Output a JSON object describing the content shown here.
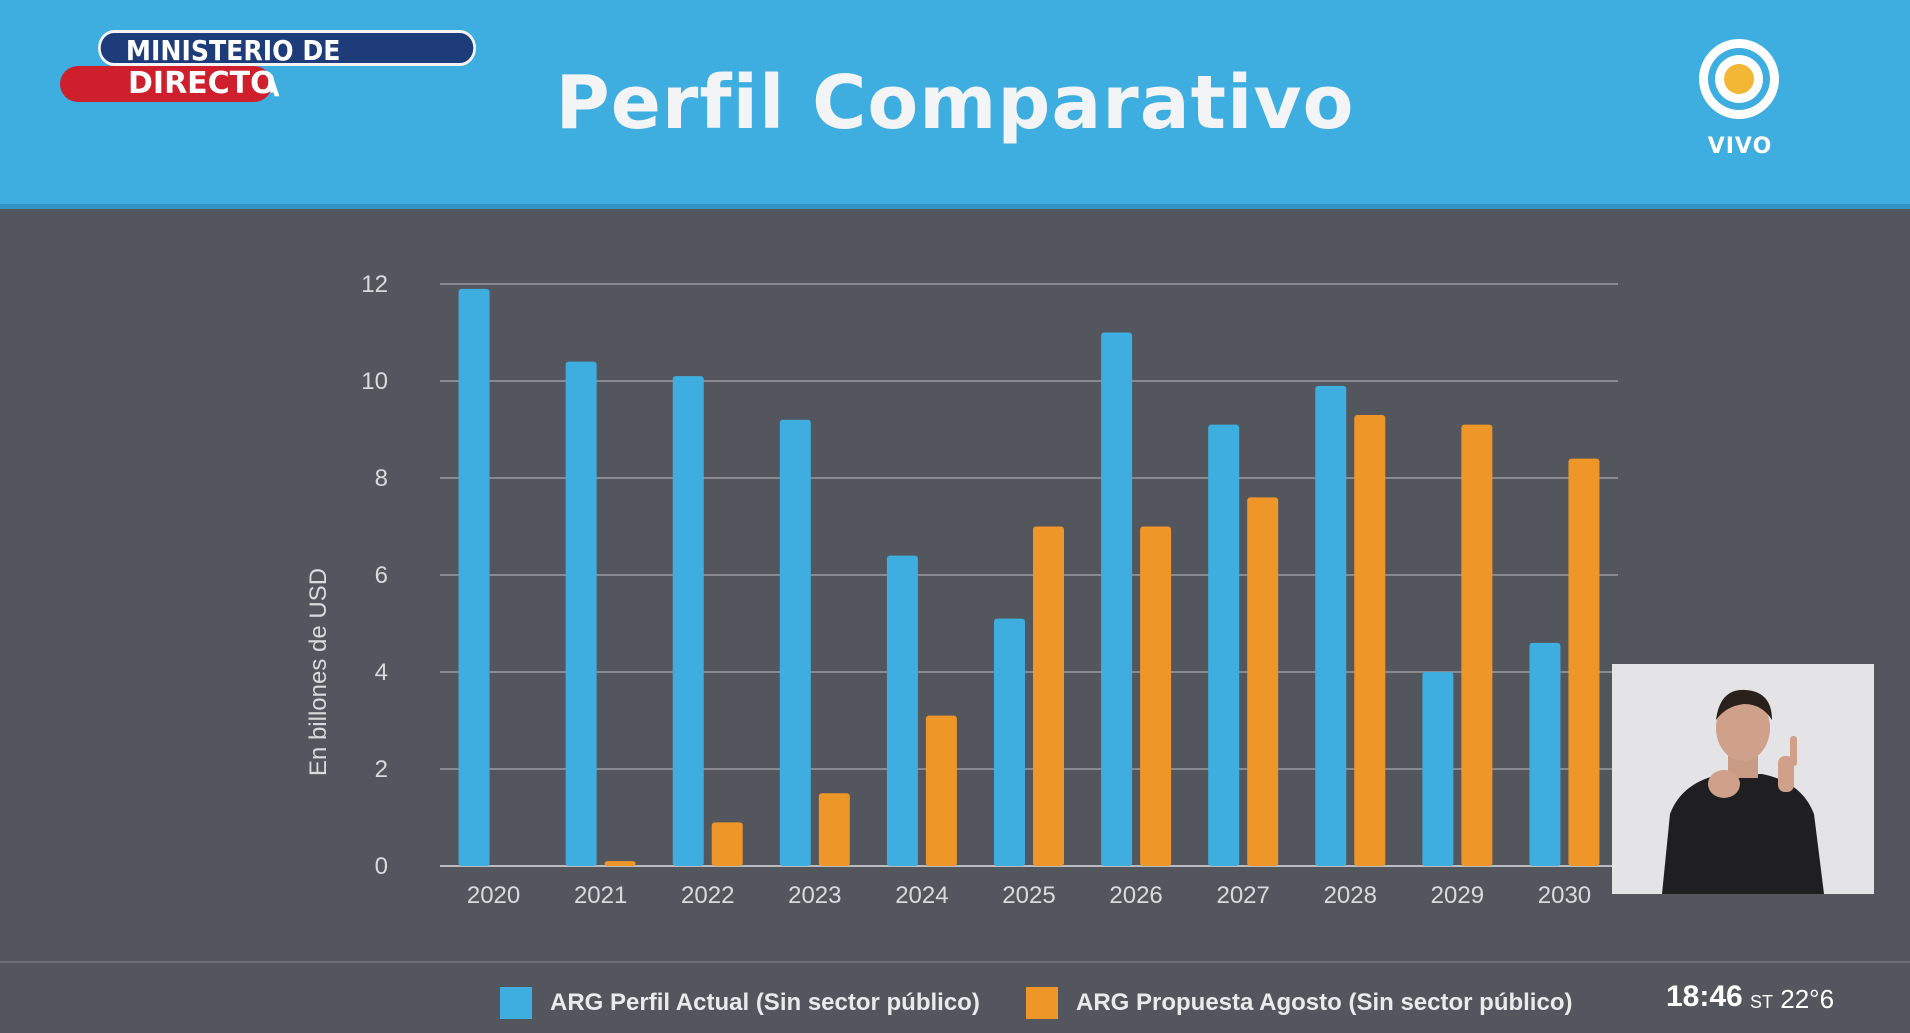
{
  "header": {
    "title": "Perfil Comparativo",
    "ministry_label": "MINISTERIO DE ECONOMÍA",
    "live_label": "DIRECTO",
    "channel_label": "VIVO"
  },
  "status": {
    "time": "18:46",
    "temp_prefix": "ST",
    "temp_value": "22°6"
  },
  "colors": {
    "series_blue": "#3eaee0",
    "series_orange": "#ee9627",
    "header_bg": "#3eade0",
    "chart_bg": "#54565d"
  },
  "chart_data": {
    "type": "bar",
    "title": "Perfil Comparativo",
    "xlabel": "",
    "ylabel": "En billones de USD",
    "ylim": [
      0,
      12
    ],
    "yticks": [
      "0",
      "2",
      "4",
      "6",
      "8",
      "10",
      "12"
    ],
    "grid": true,
    "legend_position": "bottom",
    "categories": [
      "2020",
      "2021",
      "2022",
      "2023",
      "2024",
      "2025",
      "2026",
      "2027",
      "2028",
      "2029",
      "2030"
    ],
    "series": [
      {
        "name": "ARG Perfil Actual (Sin sector público)",
        "color": "#3eaee0",
        "values": [
          11.9,
          10.4,
          10.1,
          9.2,
          6.4,
          5.1,
          11.0,
          9.1,
          9.9,
          4.0,
          4.6
        ]
      },
      {
        "name": "ARG Propuesta Agosto (Sin sector público)",
        "color": "#ee9627",
        "values": [
          0.0,
          0.1,
          0.9,
          1.5,
          3.1,
          7.0,
          7.0,
          7.6,
          9.3,
          9.1,
          8.4
        ]
      }
    ]
  }
}
